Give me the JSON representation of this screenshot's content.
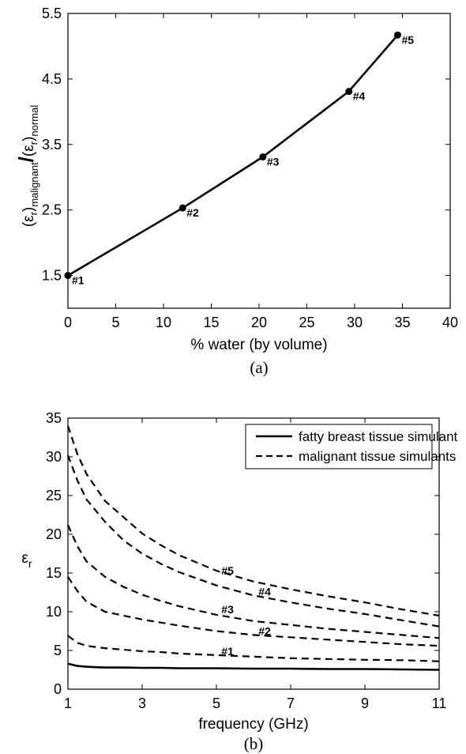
{
  "chart_data": [
    {
      "type": "line",
      "panel_label": "(a)",
      "xlabel": "% water (by volume)",
      "ylabel": {
        "numerator_symbol": "(ε",
        "numerator_sub": "r",
        "numerator_paren": ")",
        "numerator_subscript": "malignant",
        "denominator_symbol": "(ε",
        "denominator_sub": "r",
        "denominator_paren": ")",
        "denominator_subscript": "normal"
      },
      "xlim": [
        0,
        40
      ],
      "ylim": [
        1.0,
        5.5
      ],
      "xticks": [
        0,
        5,
        10,
        15,
        20,
        25,
        30,
        35,
        40
      ],
      "yticks": [
        1.5,
        2.5,
        3.5,
        4.5,
        5.5
      ],
      "ytick_labels": [
        "1.5",
        "2.5",
        "3.5",
        "4.5",
        "5.5"
      ],
      "grid": false,
      "points": [
        {
          "label": "#1",
          "x": 0,
          "y": 1.5
        },
        {
          "label": "#2",
          "x": 12,
          "y": 2.53
        },
        {
          "label": "#3",
          "x": 20.4,
          "y": 3.31
        },
        {
          "label": "#4",
          "x": 29.4,
          "y": 4.31
        },
        {
          "label": "#5",
          "x": 34.5,
          "y": 5.17
        }
      ]
    },
    {
      "type": "line",
      "panel_label": "(b)",
      "xlabel": "frequency (GHz)",
      "ylabel": {
        "symbol": "ε",
        "sub": "r"
      },
      "xlim": [
        1,
        11
      ],
      "ylim": [
        0,
        35
      ],
      "xticks": [
        1,
        3,
        5,
        7,
        9,
        11
      ],
      "yticks": [
        0,
        5,
        10,
        15,
        20,
        25,
        30,
        35
      ],
      "grid": false,
      "legend": {
        "placement": "top-right",
        "entries": [
          {
            "label": "fatty breast tissue simulant",
            "style": "solid"
          },
          {
            "label": "malignant tissue simulants",
            "style": "dashed"
          }
        ]
      },
      "x": [
        1,
        1.25,
        1.5,
        2,
        2.5,
        3,
        3.5,
        4,
        5,
        6,
        7,
        8,
        9,
        10,
        11
      ],
      "series": [
        {
          "style": "solid",
          "values": [
            3.3,
            3.0,
            2.9,
            2.8,
            2.8,
            2.75,
            2.75,
            2.7,
            2.7,
            2.65,
            2.65,
            2.6,
            2.6,
            2.55,
            2.5
          ]
        },
        {
          "label": "#1",
          "label_x": 5.3,
          "label_y": 4.4,
          "style": "dashed",
          "values": [
            6.9,
            6.0,
            5.6,
            5.3,
            5.1,
            4.9,
            4.8,
            4.6,
            4.4,
            4.2,
            4.0,
            3.9,
            3.8,
            3.75,
            3.6
          ]
        },
        {
          "label": "#2",
          "label_x": 6.3,
          "label_y": 7.0,
          "style": "dashed",
          "values": [
            14.5,
            12.7,
            11.3,
            10.0,
            9.5,
            9.0,
            8.6,
            8.2,
            7.5,
            7.0,
            6.7,
            6.4,
            6.1,
            5.8,
            5.6
          ]
        },
        {
          "label": "#3",
          "label_x": 5.3,
          "label_y": 9.8,
          "style": "dashed",
          "values": [
            21.2,
            18.5,
            16.5,
            14.5,
            13.2,
            12.2,
            11.4,
            10.7,
            9.6,
            8.8,
            8.3,
            7.8,
            7.4,
            7.0,
            6.6
          ]
        },
        {
          "label": "#4",
          "label_x": 6.3,
          "label_y": 12.1,
          "style": "dashed",
          "values": [
            30.2,
            27.0,
            24.5,
            21.6,
            19.2,
            17.5,
            16.2,
            15.1,
            13.4,
            12.1,
            11.2,
            10.4,
            9.7,
            8.9,
            8.1
          ]
        },
        {
          "label": "#5",
          "label_x": 5.3,
          "label_y": 14.8,
          "style": "dashed",
          "values": [
            34.0,
            30.4,
            27.8,
            24.3,
            22.2,
            20.1,
            18.6,
            17.3,
            15.3,
            13.9,
            12.9,
            12.0,
            11.2,
            10.3,
            9.5
          ]
        }
      ]
    }
  ]
}
